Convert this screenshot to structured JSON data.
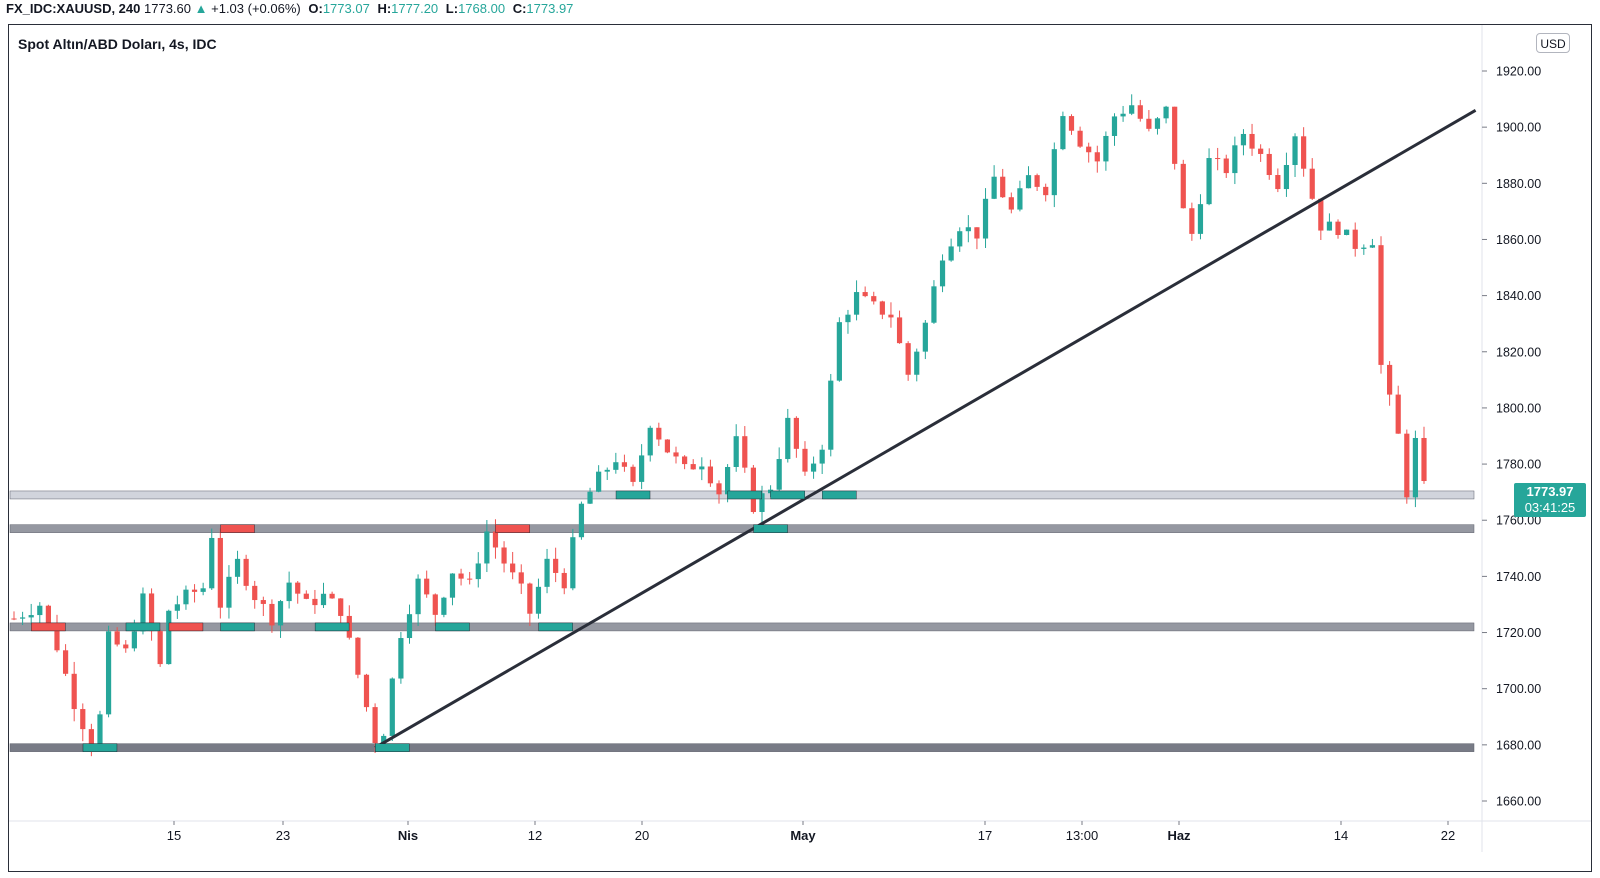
{
  "header": {
    "symbol": "FX_IDC:XAUUSD, 240",
    "last": "1773.60",
    "change": "+1.03 (+0.06%)",
    "o_label": "O:",
    "o": "1773.07",
    "h_label": "H:",
    "h": "1777.20",
    "l_label": "L:",
    "l": "1768.00",
    "c_label": "C:",
    "c": "1773.97"
  },
  "legend_title": "Spot Altın/ABD Doları, 4s, IDC",
  "currency_button": "USD",
  "price_tag": {
    "price": "1773.97",
    "countdown": "03:41:25"
  },
  "colors": {
    "up": "#26a69a",
    "down": "#ef5350",
    "trendline": "#2a2e39",
    "zone_light": "#d1d4dc",
    "zone_dark": "#787b86"
  },
  "chart_data": {
    "type": "candlestick",
    "title": "Spot Altın/ABD Doları, 4s, IDC",
    "y_range": [
      1650,
      1930
    ],
    "y_ticks": [
      "1920.00",
      "1900.00",
      "1880.00",
      "1860.00",
      "1840.00",
      "1820.00",
      "1800.00",
      "1780.00",
      "1760.00",
      "1740.00",
      "1720.00",
      "1700.00",
      "1680.00",
      "1660.00"
    ],
    "x_labels": [
      "15",
      "23",
      "Nis",
      "12",
      "20",
      "May",
      "17",
      "13:00",
      "Haz",
      "14",
      "22"
    ],
    "price_path": [
      [
        0,
        1725
      ],
      [
        3,
        1730
      ],
      [
        5,
        1715
      ],
      [
        7,
        1695
      ],
      [
        9,
        1680
      ],
      [
        10,
        1690
      ],
      [
        11,
        1718
      ],
      [
        13,
        1713
      ],
      [
        15,
        1732
      ],
      [
        17,
        1708
      ],
      [
        18,
        1728
      ],
      [
        20,
        1733
      ],
      [
        22,
        1736
      ],
      [
        23,
        1755
      ],
      [
        24,
        1730
      ],
      [
        26,
        1745
      ],
      [
        28,
        1733
      ],
      [
        30,
        1725
      ],
      [
        32,
        1738
      ],
      [
        34,
        1730
      ],
      [
        36,
        1733
      ],
      [
        38,
        1728
      ],
      [
        40,
        1705
      ],
      [
        42,
        1682
      ],
      [
        43,
        1685
      ],
      [
        44,
        1703
      ],
      [
        45,
        1720
      ],
      [
        47,
        1738
      ],
      [
        49,
        1727
      ],
      [
        51,
        1742
      ],
      [
        53,
        1737
      ],
      [
        55,
        1756
      ],
      [
        57,
        1745
      ],
      [
        59,
        1735
      ],
      [
        60,
        1727
      ],
      [
        62,
        1745
      ],
      [
        64,
        1738
      ],
      [
        66,
        1765
      ],
      [
        68,
        1775
      ],
      [
        70,
        1782
      ],
      [
        72,
        1772
      ],
      [
        74,
        1795
      ],
      [
        76,
        1785
      ],
      [
        78,
        1778
      ],
      [
        80,
        1781
      ],
      [
        82,
        1770
      ],
      [
        84,
        1788
      ],
      [
        86,
        1765
      ],
      [
        88,
        1772
      ],
      [
        90,
        1795
      ],
      [
        92,
        1775
      ],
      [
        94,
        1787
      ],
      [
        96,
        1830
      ],
      [
        98,
        1840
      ],
      [
        100,
        1836
      ],
      [
        102,
        1833
      ],
      [
        104,
        1812
      ],
      [
        106,
        1830
      ],
      [
        108,
        1855
      ],
      [
        110,
        1865
      ],
      [
        112,
        1862
      ],
      [
        114,
        1882
      ],
      [
        116,
        1870
      ],
      [
        118,
        1882
      ],
      [
        120,
        1878
      ],
      [
        122,
        1906
      ],
      [
        124,
        1895
      ],
      [
        126,
        1888
      ],
      [
        128,
        1904
      ],
      [
        130,
        1908
      ],
      [
        132,
        1898
      ],
      [
        134,
        1906
      ],
      [
        136,
        1870
      ],
      [
        137,
        1862
      ],
      [
        139,
        1888
      ],
      [
        141,
        1885
      ],
      [
        143,
        1898
      ],
      [
        145,
        1890
      ],
      [
        147,
        1880
      ],
      [
        149,
        1898
      ],
      [
        151,
        1875
      ],
      [
        152,
        1865
      ],
      [
        154,
        1864
      ],
      [
        156,
        1858
      ],
      [
        158,
        1860
      ],
      [
        159,
        1815
      ],
      [
        161,
        1790
      ],
      [
        162,
        1770
      ],
      [
        163,
        1788
      ],
      [
        164,
        1774
      ]
    ],
    "horizontal_zones": [
      {
        "price": 1769,
        "style": "light"
      },
      {
        "price": 1757,
        "style": "dark"
      },
      {
        "price": 1722,
        "style": "dark"
      },
      {
        "price": 1679,
        "style": "darker"
      }
    ],
    "trendline": {
      "start": [
        42,
        1679
      ],
      "end": [
        170,
        1906
      ]
    },
    "markers": [
      {
        "type": "resistance",
        "i": 4,
        "price": 1722
      },
      {
        "type": "support",
        "i": 15,
        "price": 1722
      },
      {
        "type": "resistance",
        "i": 20,
        "price": 1722
      },
      {
        "type": "support",
        "i": 26,
        "price": 1722
      },
      {
        "type": "support",
        "i": 37,
        "price": 1722
      },
      {
        "type": "support",
        "i": 51,
        "price": 1722
      },
      {
        "type": "support",
        "i": 63,
        "price": 1722
      },
      {
        "type": "resistance",
        "i": 26,
        "price": 1757
      },
      {
        "type": "resistance",
        "i": 58,
        "price": 1757
      },
      {
        "type": "support",
        "i": 88,
        "price": 1757
      },
      {
        "type": "support",
        "i": 72,
        "price": 1769
      },
      {
        "type": "support",
        "i": 85,
        "price": 1769
      },
      {
        "type": "support",
        "i": 90,
        "price": 1769
      },
      {
        "type": "support",
        "i": 96,
        "price": 1769
      },
      {
        "type": "support",
        "i": 10,
        "price": 1679
      },
      {
        "type": "support",
        "i": 44,
        "price": 1679
      }
    ]
  }
}
